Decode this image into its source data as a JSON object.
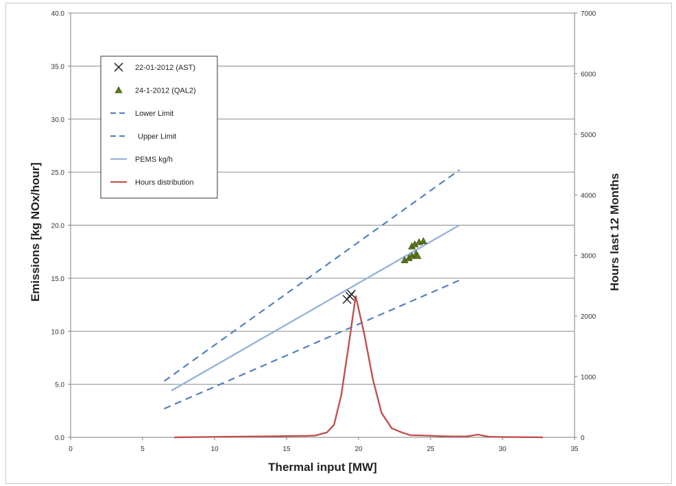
{
  "chart_data": {
    "type": "scatter",
    "xlabel": "Thermal input [MW]",
    "ylabel": "Emissions [kg NOx/hour]",
    "y2label": "Hours  last 12  Months",
    "xlim": [
      0,
      35
    ],
    "ylim": [
      0,
      40
    ],
    "y2lim": [
      0,
      7000
    ],
    "x_ticks": [
      "0",
      "5",
      "10",
      "15",
      "20",
      "25",
      "30",
      "35"
    ],
    "y_ticks": [
      "0.0",
      "5.0",
      "10.0",
      "15.0",
      "20.0",
      "25.0",
      "30.0",
      "35.0",
      "40.0"
    ],
    "y2_ticks": [
      "0",
      "1000",
      "2000",
      "3000",
      "4000",
      "5000",
      "6000",
      "7000"
    ],
    "grid": "horizontal",
    "legend_position": "top-left",
    "series": [
      {
        "name": "22-01-2012 (AST)",
        "kind": "marker-x",
        "axis": "left",
        "color": "#333333",
        "points": [
          [
            19.2,
            13.0
          ],
          [
            19.4,
            13.3
          ],
          [
            19.5,
            13.5
          ]
        ]
      },
      {
        "name": "24-1-2012 (QAL2)",
        "kind": "marker-triangle",
        "axis": "left",
        "color": "#5a7a1a",
        "points": [
          [
            23.2,
            16.7
          ],
          [
            23.5,
            16.9
          ],
          [
            23.7,
            17.1
          ],
          [
            24.0,
            17.3
          ],
          [
            24.1,
            17.1
          ],
          [
            23.7,
            18.0
          ],
          [
            23.9,
            18.2
          ],
          [
            24.2,
            18.4
          ],
          [
            24.5,
            18.5
          ]
        ]
      },
      {
        "name": "Lower Limit",
        "kind": "dashed-line",
        "axis": "left",
        "color": "#4f81bd",
        "points": [
          [
            6.5,
            5.3
          ],
          [
            27.0,
            25.2
          ]
        ]
      },
      {
        "name": "Upper Limit",
        "kind": "dashed-line",
        "axis": "left",
        "color": "#4f81bd",
        "points": [
          [
            6.5,
            2.7
          ],
          [
            27.0,
            14.8
          ]
        ]
      },
      {
        "name": "PEMS kg/h",
        "kind": "line",
        "axis": "left",
        "color": "#95b3d7",
        "points": [
          [
            7.0,
            4.4
          ],
          [
            27.0,
            20.0
          ]
        ]
      },
      {
        "name": "Hours distribution",
        "kind": "line",
        "axis": "right",
        "color": "#c0504d",
        "points": [
          [
            7.2,
            0
          ],
          [
            9,
            5
          ],
          [
            11,
            10
          ],
          [
            13,
            15
          ],
          [
            15,
            20
          ],
          [
            16.5,
            25
          ],
          [
            17,
            30
          ],
          [
            17.8,
            80
          ],
          [
            18.3,
            210
          ],
          [
            18.8,
            700
          ],
          [
            19.3,
            1500
          ],
          [
            19.8,
            2330
          ],
          [
            20.4,
            1700
          ],
          [
            21.0,
            950
          ],
          [
            21.6,
            400
          ],
          [
            22.3,
            150
          ],
          [
            23.0,
            80
          ],
          [
            23.6,
            35
          ],
          [
            24.5,
            30
          ],
          [
            25.5,
            20
          ],
          [
            26.5,
            15
          ],
          [
            27.5,
            15
          ],
          [
            28.3,
            45
          ],
          [
            29.0,
            10
          ],
          [
            30,
            5
          ],
          [
            31,
            3
          ],
          [
            32,
            2
          ],
          [
            32.8,
            0
          ]
        ]
      }
    ]
  }
}
